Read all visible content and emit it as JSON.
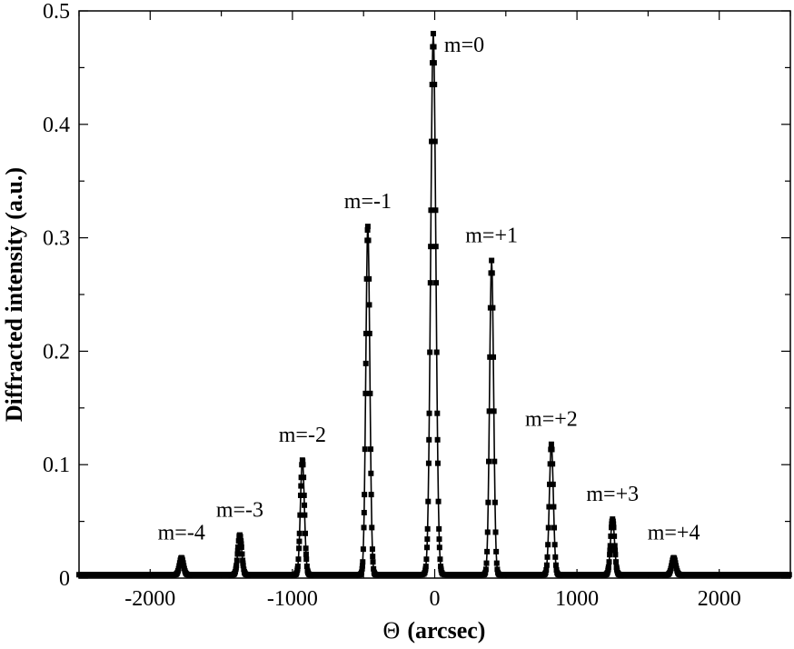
{
  "chart_data": {
    "type": "line",
    "xlabel_symbol": "Θ",
    "xlabel_unit": "(arcsec)",
    "ylabel": "Diffracted intensity (a.u.)",
    "xlim": [
      -2500,
      2500
    ],
    "ylim": [
      0,
      0.5
    ],
    "x_ticks": [
      -2000,
      -1000,
      0,
      1000,
      2000
    ],
    "x_tick_labels": [
      "-2000",
      "-1000",
      "0",
      "1000",
      "2000"
    ],
    "y_ticks": [
      0,
      0.1,
      0.2,
      0.3,
      0.4,
      0.5
    ],
    "y_tick_labels": [
      "0",
      "0.1",
      "0.2",
      "0.3",
      "0.4",
      "0.5"
    ],
    "grid": false,
    "legend": "none",
    "marker": "square",
    "baseline": 0.003,
    "peaks": [
      {
        "label": "m=-4",
        "x": -1780,
        "y": 0.018
      },
      {
        "label": "m=-3",
        "x": -1370,
        "y": 0.038
      },
      {
        "label": "m=-2",
        "x": -930,
        "y": 0.104
      },
      {
        "label": "m=-1",
        "x": -470,
        "y": 0.31
      },
      {
        "label": "m=0",
        "x": -10,
        "y": 0.48
      },
      {
        "label": "m=+1",
        "x": 400,
        "y": 0.28
      },
      {
        "label": "m=+2",
        "x": 820,
        "y": 0.118
      },
      {
        "label": "m=+3",
        "x": 1250,
        "y": 0.052
      },
      {
        "label": "m=+4",
        "x": 1680,
        "y": 0.018
      }
    ]
  }
}
